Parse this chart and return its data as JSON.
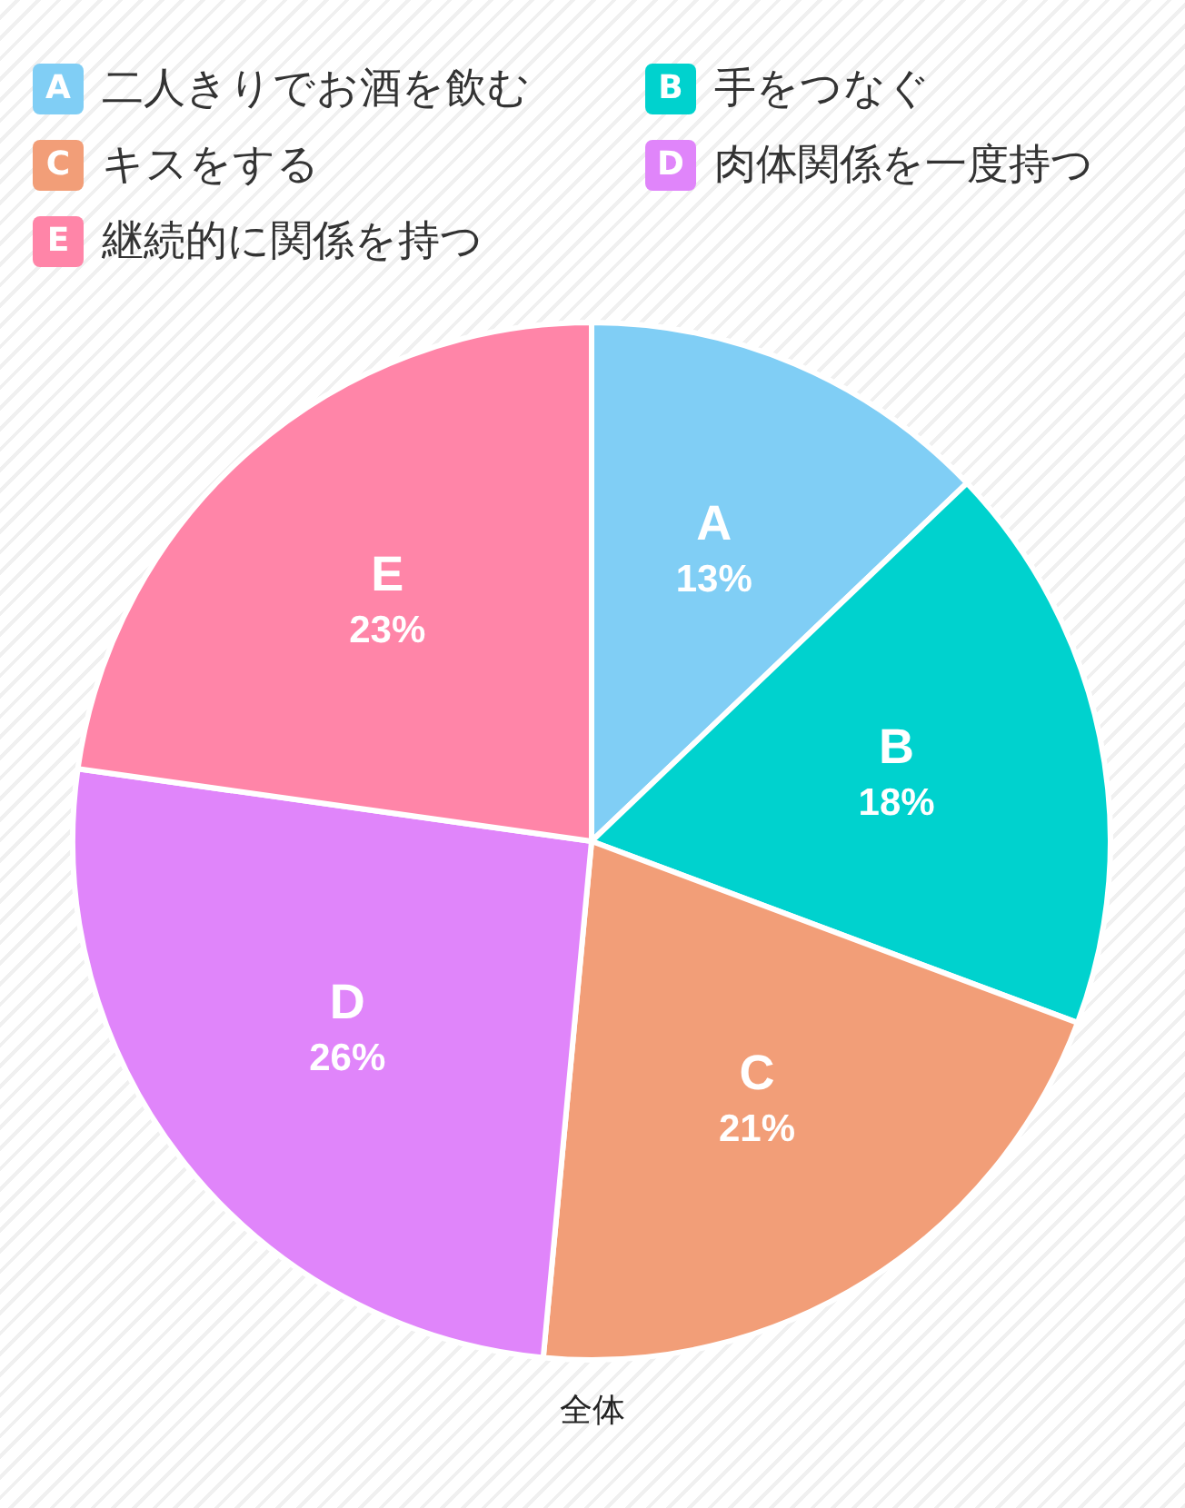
{
  "chart_data": {
    "type": "pie",
    "categories": [
      "二人きりでお酒を飲む",
      "手をつなぐ",
      "キスをする",
      "肉体関係を一度持つ",
      "継続的に関係を持つ"
    ],
    "values": [
      13,
      18,
      21,
      26,
      23
    ],
    "value_labels": [
      "13%",
      "18%",
      "21%",
      "26%",
      "23%"
    ],
    "colors": [
      "#80cef5",
      "#00d2ce",
      "#f29e78",
      "#e085fa",
      "#ff85a8"
    ],
    "annotations": [
      {
        "text": "A",
        "x": "二人きりでお酒を飲む"
      },
      {
        "text": "B",
        "x": "手をつなぐ"
      },
      {
        "text": "C",
        "x": "キスをする"
      },
      {
        "text": "D",
        "x": "肉体関係を一度持つ"
      },
      {
        "text": "E",
        "x": "継続的に関係を持つ"
      },
      "全体"
    ],
    "legend": "top"
  }
}
